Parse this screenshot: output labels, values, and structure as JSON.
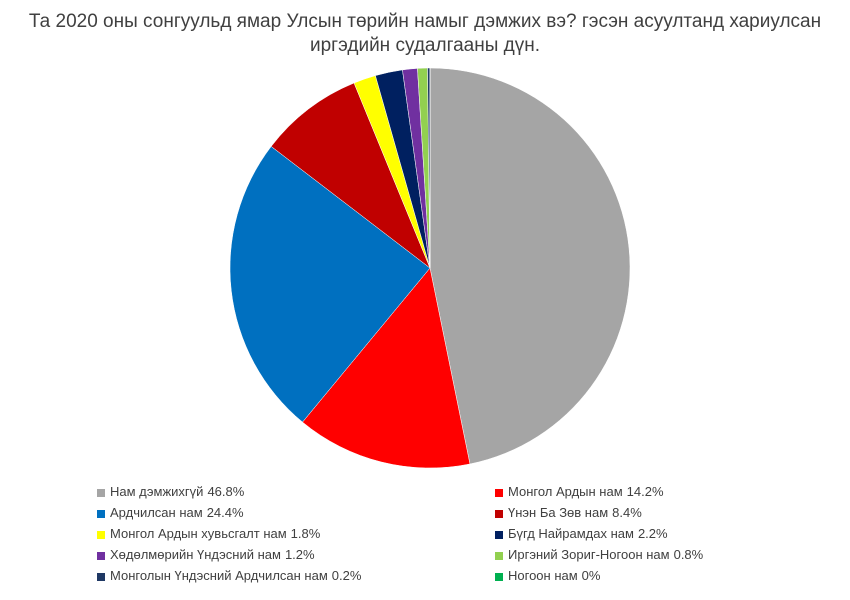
{
  "chart_data": {
    "type": "pie",
    "title": "Та 2020 оны сонгуульд ямар Улсын төрийн намыг дэмжих вэ? гэсэн асуултанд хариулсан иргэдийн судалгааны дүн.",
    "categories": [
      "Нам дэмжихгүй",
      "Монгол Ардын нам",
      "Ардчилсан нам",
      "Үнэн Ба Зөв нам",
      "Монгол Ардын хувьсгалт нам",
      "Бүгд Найрамдах нам",
      "Хөдөлмөрийн Үндэсний нам",
      "Иргэний Зориг-Ногоон нам",
      "Монголын Үндэсний Ардчилсан нам",
      "Ногоон нам"
    ],
    "values": [
      46.8,
      14.2,
      24.4,
      8.4,
      1.8,
      2.2,
      1.2,
      0.8,
      0.2,
      0
    ],
    "value_labels": [
      "46.8%",
      "14.2%",
      "24.4%",
      "8.4%",
      "1.8%",
      "2.2%",
      "1.2%",
      "0.8%",
      "0.2%",
      "0%"
    ],
    "colors": [
      "#a5a5a5",
      "#ff0000",
      "#0070c0",
      "#c00000",
      "#ffff00",
      "#002060",
      "#7030a0",
      "#92d050",
      "#1f3864",
      "#00b050"
    ],
    "legend": "bottom"
  }
}
